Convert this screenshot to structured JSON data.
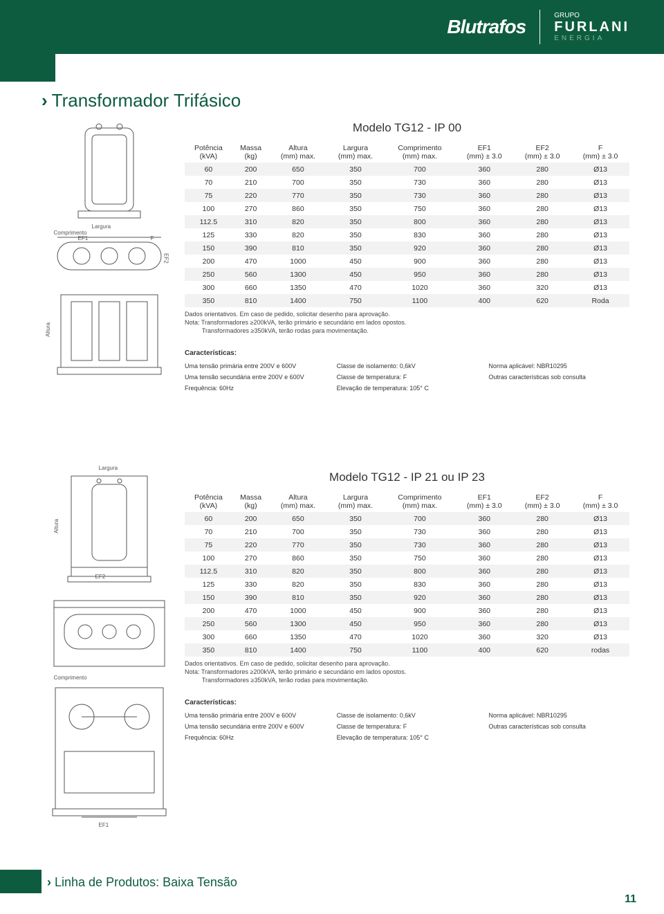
{
  "header": {
    "brand": "Blutrafos",
    "group_top": "GRUPO",
    "group_mid": "FURLANI",
    "group_bot": "ENERGIA"
  },
  "page_title": "Transformador Trifásico",
  "footer_title": "Linha de Produtos: Baixa Tensão",
  "page_number": "11",
  "diagram_labels": {
    "largura": "Largura",
    "comprimento": "Comprimento",
    "altura": "Altura",
    "ef1": "EF1",
    "ef2": "EF2",
    "f": "F"
  },
  "table_columns": [
    {
      "l1": "Potência",
      "l2": "(kVA)"
    },
    {
      "l1": "Massa",
      "l2": "(kg)"
    },
    {
      "l1": "Altura",
      "l2": "(mm) max."
    },
    {
      "l1": "Largura",
      "l2": "(mm) max."
    },
    {
      "l1": "Comprimento",
      "l2": "(mm) max."
    },
    {
      "l1": "EF1",
      "l2": "(mm) ± 3.0"
    },
    {
      "l1": "EF2",
      "l2": "(mm) ± 3.0"
    },
    {
      "l1": "F",
      "l2": "(mm) ± 3.0"
    }
  ],
  "section1": {
    "title": "Modelo TG12 - IP 00",
    "rows": [
      [
        "60",
        "200",
        "650",
        "350",
        "700",
        "360",
        "280",
        "Ø13"
      ],
      [
        "70",
        "210",
        "700",
        "350",
        "730",
        "360",
        "280",
        "Ø13"
      ],
      [
        "75",
        "220",
        "770",
        "350",
        "730",
        "360",
        "280",
        "Ø13"
      ],
      [
        "100",
        "270",
        "860",
        "350",
        "750",
        "360",
        "280",
        "Ø13"
      ],
      [
        "112.5",
        "310",
        "820",
        "350",
        "800",
        "360",
        "280",
        "Ø13"
      ],
      [
        "125",
        "330",
        "820",
        "350",
        "830",
        "360",
        "280",
        "Ø13"
      ],
      [
        "150",
        "390",
        "810",
        "350",
        "920",
        "360",
        "280",
        "Ø13"
      ],
      [
        "200",
        "470",
        "1000",
        "450",
        "900",
        "360",
        "280",
        "Ø13"
      ],
      [
        "250",
        "560",
        "1300",
        "450",
        "950",
        "360",
        "280",
        "Ø13"
      ],
      [
        "300",
        "660",
        "1350",
        "470",
        "1020",
        "360",
        "320",
        "Ø13"
      ],
      [
        "350",
        "810",
        "1400",
        "750",
        "1100",
        "400",
        "620",
        "Roda"
      ]
    ],
    "notes": [
      "Dados orientativos. Em caso de pedido, solicitar desenho para aprovação.",
      "Nota: Transformadores ≥200kVA, terão primário e secundário em lados opostos.",
      "          Transformadores ≥350kVA, terão rodas para movimentação."
    ]
  },
  "section2": {
    "title": "Modelo TG12 - IP 21 ou IP 23",
    "rows": [
      [
        "60",
        "200",
        "650",
        "350",
        "700",
        "360",
        "280",
        "Ø13"
      ],
      [
        "70",
        "210",
        "700",
        "350",
        "730",
        "360",
        "280",
        "Ø13"
      ],
      [
        "75",
        "220",
        "770",
        "350",
        "730",
        "360",
        "280",
        "Ø13"
      ],
      [
        "100",
        "270",
        "860",
        "350",
        "750",
        "360",
        "280",
        "Ø13"
      ],
      [
        "112.5",
        "310",
        "820",
        "350",
        "800",
        "360",
        "280",
        "Ø13"
      ],
      [
        "125",
        "330",
        "820",
        "350",
        "830",
        "360",
        "280",
        "Ø13"
      ],
      [
        "150",
        "390",
        "810",
        "350",
        "920",
        "360",
        "280",
        "Ø13"
      ],
      [
        "200",
        "470",
        "1000",
        "450",
        "900",
        "360",
        "280",
        "Ø13"
      ],
      [
        "250",
        "560",
        "1300",
        "450",
        "950",
        "360",
        "280",
        "Ø13"
      ],
      [
        "300",
        "660",
        "1350",
        "470",
        "1020",
        "360",
        "320",
        "Ø13"
      ],
      [
        "350",
        "810",
        "1400",
        "750",
        "1100",
        "400",
        "620",
        "rodas"
      ]
    ],
    "notes": [
      "Dados orientativos. Em caso de pedido, solicitar desenho para aprovação.",
      "Nota: Transformadores ≥200kVA, terão primário e secundário em lados opostos.",
      "          Transformadores ≥350kVA, terão rodas para movimentação."
    ]
  },
  "characteristics": {
    "title": "Características:",
    "items": [
      "Uma tensão primária entre 200V e 600V",
      "Classe de isolamento: 0,6kV",
      "Norma aplicável: NBR10295",
      "Uma tensão secundária entre 200V e 600V",
      "Classe de temperatura: F",
      "Outras características sob consulta",
      "Frequência: 60Hz",
      "Elevação de temperatura: 105° C",
      ""
    ]
  },
  "style": {
    "brand_green": "#0d5c3f",
    "row_alt_bg": "#f2f2f2",
    "text_color": "#333333"
  }
}
